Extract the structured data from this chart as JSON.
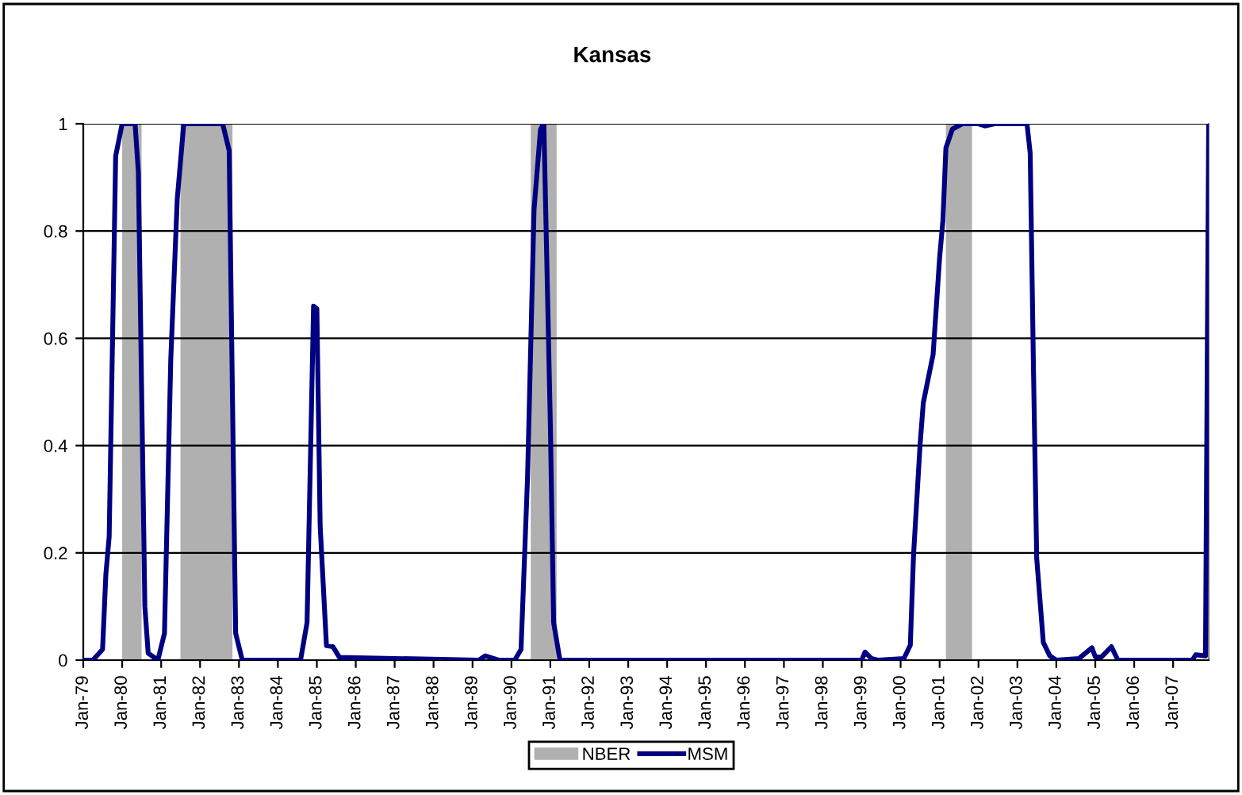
{
  "chart_data": {
    "type": "line",
    "title": "Kansas",
    "x": [
      "1979-01",
      "1979-04",
      "1979-07",
      "1979-08",
      "1979-09",
      "1979-11",
      "1980-01",
      "1980-05",
      "1980-06",
      "1980-08",
      "1980-09",
      "1980-12",
      "1981-02",
      "1981-04",
      "1981-06",
      "1981-08",
      "1982-08",
      "1982-10",
      "1982-12",
      "1983-02",
      "1984-08",
      "1984-10",
      "1984-12",
      "1985-01",
      "1985-02",
      "1985-04",
      "1985-06",
      "1985-08",
      "1989-03",
      "1989-05",
      "1989-09",
      "1990-02",
      "1990-04",
      "1990-06",
      "1990-08",
      "1990-10",
      "1990-11",
      "1991-01",
      "1991-02",
      "1991-04",
      "1999-01",
      "1999-02",
      "1999-04",
      "1999-06",
      "2000-02",
      "2000-04",
      "2000-05",
      "2000-07",
      "2000-08",
      "2000-11",
      "2001-01",
      "2001-02",
      "2001-03",
      "2001-05",
      "2001-08",
      "2002-01",
      "2002-03",
      "2002-06",
      "2003-04",
      "2003-05",
      "2003-06",
      "2003-07",
      "2003-09",
      "2003-11",
      "2004-01",
      "2004-08",
      "2004-12",
      "2005-01",
      "2005-03",
      "2005-06",
      "2005-08",
      "2007-07",
      "2007-08",
      "2007-11",
      "2007-12"
    ],
    "series": [
      {
        "name": "MSM",
        "color": "#000080",
        "values": [
          0,
          0,
          0.02,
          0.16,
          0.23,
          0.94,
          1,
          1,
          0.91,
          0.1,
          0.013,
          0,
          0.05,
          0.56,
          0.86,
          1,
          1,
          0.95,
          0.05,
          0,
          0,
          0.07,
          0.66,
          0.655,
          0.25,
          0.027,
          0.025,
          0.005,
          0,
          0.008,
          0,
          0,
          0.02,
          0.34,
          0.84,
          0.99,
          1,
          0.44,
          0.07,
          0,
          0,
          0.015,
          0.003,
          0,
          0.003,
          0.028,
          0.195,
          0.4,
          0.48,
          0.57,
          0.75,
          0.82,
          0.955,
          0.99,
          1,
          1,
          0.996,
          1,
          1,
          0.945,
          0.54,
          0.19,
          0.033,
          0.008,
          0,
          0.003,
          0.023,
          0.006,
          0.006,
          0.025,
          0,
          0,
          0.01,
          0.008,
          1
        ]
      }
    ],
    "xlim": [
      "1979-01",
      "2007-12"
    ],
    "xticks": [
      {
        "value": "1979-01",
        "label": "Jan-79"
      },
      {
        "value": "1980-01",
        "label": "Jan-80"
      },
      {
        "value": "1981-01",
        "label": "Jan-81"
      },
      {
        "value": "1982-01",
        "label": "Jan-82"
      },
      {
        "value": "1983-01",
        "label": "Jan-83"
      },
      {
        "value": "1984-01",
        "label": "Jan-84"
      },
      {
        "value": "1985-01",
        "label": "Jan-85"
      },
      {
        "value": "1986-01",
        "label": "Jan-86"
      },
      {
        "value": "1987-01",
        "label": "Jan-87"
      },
      {
        "value": "1988-01",
        "label": "Jan-88"
      },
      {
        "value": "1989-01",
        "label": "Jan-89"
      },
      {
        "value": "1990-01",
        "label": "Jan-90"
      },
      {
        "value": "1991-01",
        "label": "Jan-91"
      },
      {
        "value": "1992-01",
        "label": "Jan-92"
      },
      {
        "value": "1993-01",
        "label": "Jan-93"
      },
      {
        "value": "1994-01",
        "label": "Jan-94"
      },
      {
        "value": "1995-01",
        "label": "Jan-95"
      },
      {
        "value": "1996-01",
        "label": "Jan-96"
      },
      {
        "value": "1997-01",
        "label": "Jan-97"
      },
      {
        "value": "1998-01",
        "label": "Jan-98"
      },
      {
        "value": "1999-01",
        "label": "Jan-99"
      },
      {
        "value": "2000-01",
        "label": "Jan-00"
      },
      {
        "value": "2001-01",
        "label": "Jan-01"
      },
      {
        "value": "2002-01",
        "label": "Jan-02"
      },
      {
        "value": "2003-01",
        "label": "Jan-03"
      },
      {
        "value": "2004-01",
        "label": "Jan-04"
      },
      {
        "value": "2005-01",
        "label": "Jan-05"
      },
      {
        "value": "2006-01",
        "label": "Jan-06"
      },
      {
        "value": "2007-01",
        "label": "Jan-07"
      }
    ],
    "ylim": [
      0,
      1
    ],
    "yticks": [
      0,
      0.2,
      0.4,
      0.6,
      0.8,
      1
    ],
    "bands": [
      {
        "axis": "x",
        "from": "1980-01",
        "to": "1980-07",
        "label": "NBER",
        "color": "#b0b0b0"
      },
      {
        "axis": "x",
        "from": "1981-07",
        "to": "1982-11",
        "color": "#b0b0b0"
      },
      {
        "axis": "x",
        "from": "1990-07",
        "to": "1991-03",
        "color": "#b0b0b0"
      },
      {
        "axis": "x",
        "from": "2001-03",
        "to": "2001-11",
        "color": "#b0b0b0"
      }
    ],
    "grid": "y",
    "legend": "bottom",
    "marker": "none",
    "line_style": "solid"
  }
}
